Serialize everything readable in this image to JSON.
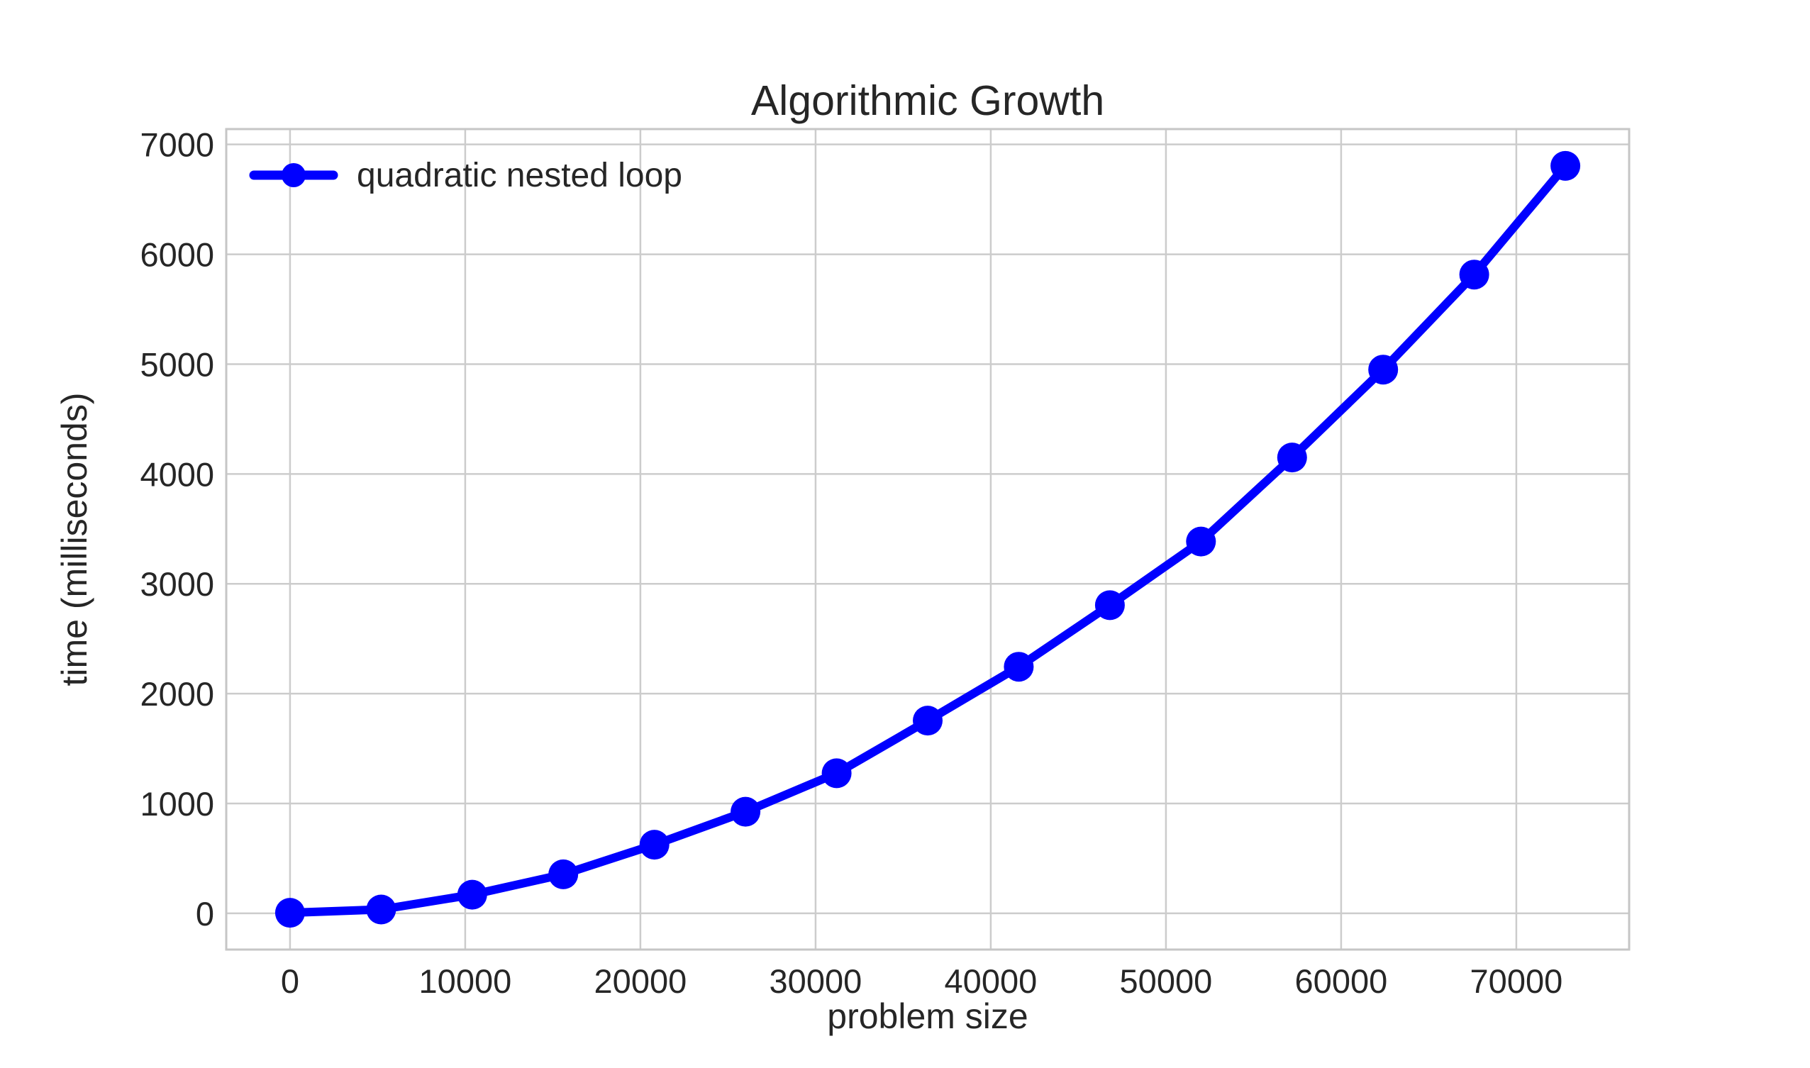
{
  "page": {
    "background": "#ffffff"
  },
  "chart_data": {
    "type": "line",
    "title": "Algorithmic Growth",
    "xlabel": "problem size",
    "ylabel": "time (milliseconds)",
    "grid": true,
    "legend_position": "upper left",
    "xlim": [
      -3640,
      76440
    ],
    "ylim": [
      -330,
      7140
    ],
    "xticks": [
      0,
      10000,
      20000,
      30000,
      40000,
      50000,
      60000,
      70000
    ],
    "yticks": [
      0,
      1000,
      2000,
      3000,
      4000,
      5000,
      6000,
      7000
    ],
    "grid_color": "#cccccc",
    "frame_color": "#c6c6c6",
    "text_color": "#262626",
    "series": [
      {
        "name": "quadratic nested loop",
        "color": "#0000FF",
        "marker": "circle",
        "x": [
          0,
          5200,
          10400,
          15600,
          20800,
          26000,
          31200,
          36400,
          41600,
          46800,
          52000,
          57200,
          62400,
          67600,
          72800
        ],
        "y": [
          5,
          35,
          170,
          355,
          625,
          925,
          1275,
          1755,
          2245,
          2805,
          3385,
          4150,
          4950,
          5815,
          6805
        ]
      }
    ]
  }
}
